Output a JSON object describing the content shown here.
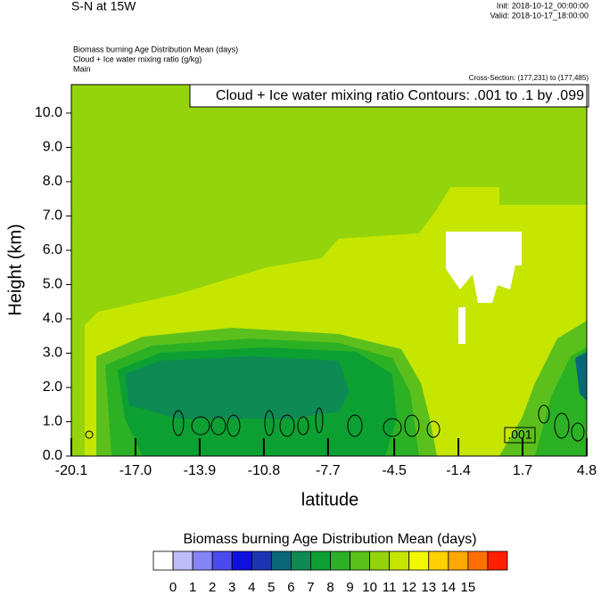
{
  "chart_data": {
    "type": "contour",
    "title": "S-N at 15W",
    "init": "Init: 2018-10-12_00:00:00",
    "valid": "Valid: 2018-10-17_18:00:00",
    "field_lines": [
      "Biomass burning Age Distribution Mean   (days)",
      "Cloud + Ice water mixing ratio   (g/kg)",
      "Main"
    ],
    "cross_section": "Cross-Section: (177,231) to (177,485)",
    "contour_note": "Cloud + Ice water mixing ratio Contours: .001 to .1 by .099",
    "contour_label": ".001",
    "x_label": "latitude",
    "y_label": "Height (km)",
    "xlim": [
      -20.1,
      4.8
    ],
    "ylim": [
      0,
      10.83
    ],
    "xticks": [
      -20.1,
      {
        "value": -17,
        "label": "-17.0"
      },
      -13.9,
      -10.8,
      -7.7,
      -4.5,
      -1.4,
      1.7,
      4.8
    ],
    "yticks": [
      {
        "value": 0,
        "label": "0.0"
      },
      {
        "value": 1,
        "label": "1.0"
      },
      {
        "value": 2,
        "label": "2.0"
      },
      {
        "value": 3,
        "label": "3.0"
      },
      {
        "value": 4,
        "label": "4.0"
      },
      {
        "value": 5,
        "label": "5.0"
      },
      {
        "value": 6,
        "label": "6.0"
      },
      {
        "value": 7,
        "label": "7.0"
      },
      {
        "value": 8,
        "label": "8.0"
      },
      {
        "value": 9,
        "label": "9.0"
      },
      {
        "value": 10,
        "label": "10.0"
      }
    ],
    "colorbar_title": "Biomass burning Age Distribution Mean  (days)",
    "levels": [
      0,
      1,
      2,
      3,
      4,
      5,
      6,
      7,
      8,
      9,
      10,
      11,
      12,
      13,
      14,
      15
    ],
    "colors": [
      "#ffffff",
      "#bcbcf8",
      "#8484f4",
      "#4a4aee",
      "#1010dc",
      "#1a34b4",
      "#0a6878",
      "#0e8a54",
      "#0ca032",
      "#2cb024",
      "#5cc01c",
      "#94d40c",
      "#c6e600",
      "#f2f800",
      "#ffd200",
      "#ffa800",
      "#ff7000",
      "#ff2000"
    ]
  }
}
